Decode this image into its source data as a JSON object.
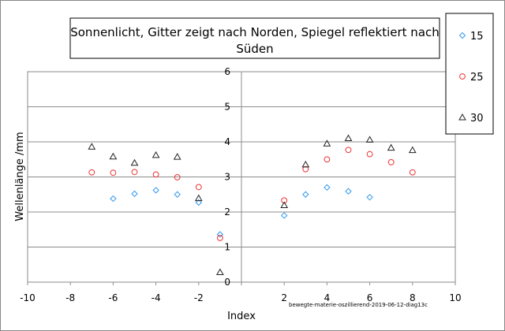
{
  "chart_data": {
    "type": "scatter",
    "title_lines": [
      "Sonnenlicht, Gitter zeigt nach Norden, Spiegel reflektiert nach",
      "Süden"
    ],
    "xlabel": "Index",
    "ylabel": "Wellenlänge /mm",
    "xlim": [
      -10,
      10
    ],
    "ylim": [
      0,
      6
    ],
    "xticks": [
      -10,
      -8,
      -6,
      -4,
      -2,
      0,
      2,
      4,
      6,
      8,
      10
    ],
    "yticks": [
      0,
      1,
      2,
      3,
      4,
      5,
      6
    ],
    "grid": "horizontal",
    "legend_position": "right",
    "credit": "bewegte-materie-oszillierend-2019-06-12-diag13c",
    "series": [
      {
        "name": "15",
        "marker": "diamond",
        "color": "#3399ee",
        "points": [
          [
            -6,
            2.38
          ],
          [
            -5,
            2.52
          ],
          [
            -4,
            2.62
          ],
          [
            -3,
            2.5
          ],
          [
            -2,
            2.27
          ],
          [
            -1,
            1.36
          ],
          [
            2,
            1.9
          ],
          [
            3,
            2.5
          ],
          [
            4,
            2.7
          ],
          [
            5,
            2.59
          ],
          [
            6,
            2.42
          ]
        ]
      },
      {
        "name": "25",
        "marker": "circle",
        "color": "#ee3333",
        "points": [
          [
            -7,
            3.13
          ],
          [
            -6,
            3.12
          ],
          [
            -5,
            3.14
          ],
          [
            -4,
            3.07
          ],
          [
            -3,
            2.99
          ],
          [
            -2,
            2.71
          ],
          [
            -1,
            1.26
          ],
          [
            2,
            2.33
          ],
          [
            3,
            3.22
          ],
          [
            4,
            3.5
          ],
          [
            5,
            3.77
          ],
          [
            6,
            3.65
          ],
          [
            7,
            3.42
          ],
          [
            8,
            3.13
          ]
        ]
      },
      {
        "name": "30",
        "marker": "triangle",
        "color": "#222222",
        "points": [
          [
            -7,
            3.86
          ],
          [
            -6,
            3.58
          ],
          [
            -5,
            3.4
          ],
          [
            -4,
            3.62
          ],
          [
            -3,
            3.57
          ],
          [
            -2,
            2.39
          ],
          [
            -1,
            0.28
          ],
          [
            2,
            2.19
          ],
          [
            3,
            3.35
          ],
          [
            4,
            3.95
          ],
          [
            5,
            4.1
          ],
          [
            6,
            4.06
          ],
          [
            7,
            3.83
          ],
          [
            8,
            3.76
          ]
        ]
      }
    ]
  }
}
